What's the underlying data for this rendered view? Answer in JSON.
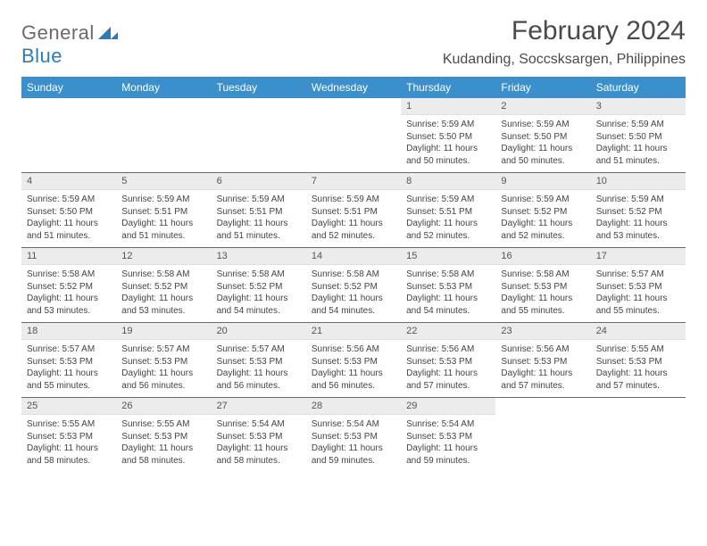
{
  "logo": {
    "general": "General",
    "blue": "Blue"
  },
  "title": "February 2024",
  "location": "Kudanding, Soccsksargen, Philippines",
  "colors": {
    "header_bg": "#3b8fca",
    "header_text": "#ffffff",
    "week_divider": "#2b7bbd",
    "daynum_bg": "#ececec",
    "body_text": "#444444",
    "logo_gray": "#6b6b6b",
    "logo_blue": "#2b7bbd",
    "page_bg": "#ffffff"
  },
  "day_names": [
    "Sunday",
    "Monday",
    "Tuesday",
    "Wednesday",
    "Thursday",
    "Friday",
    "Saturday"
  ],
  "weeks": [
    [
      {
        "n": "",
        "sr": "",
        "ss": "",
        "dl": ""
      },
      {
        "n": "",
        "sr": "",
        "ss": "",
        "dl": ""
      },
      {
        "n": "",
        "sr": "",
        "ss": "",
        "dl": ""
      },
      {
        "n": "",
        "sr": "",
        "ss": "",
        "dl": ""
      },
      {
        "n": "1",
        "sr": "Sunrise: 5:59 AM",
        "ss": "Sunset: 5:50 PM",
        "dl": "Daylight: 11 hours and 50 minutes."
      },
      {
        "n": "2",
        "sr": "Sunrise: 5:59 AM",
        "ss": "Sunset: 5:50 PM",
        "dl": "Daylight: 11 hours and 50 minutes."
      },
      {
        "n": "3",
        "sr": "Sunrise: 5:59 AM",
        "ss": "Sunset: 5:50 PM",
        "dl": "Daylight: 11 hours and 51 minutes."
      }
    ],
    [
      {
        "n": "4",
        "sr": "Sunrise: 5:59 AM",
        "ss": "Sunset: 5:50 PM",
        "dl": "Daylight: 11 hours and 51 minutes."
      },
      {
        "n": "5",
        "sr": "Sunrise: 5:59 AM",
        "ss": "Sunset: 5:51 PM",
        "dl": "Daylight: 11 hours and 51 minutes."
      },
      {
        "n": "6",
        "sr": "Sunrise: 5:59 AM",
        "ss": "Sunset: 5:51 PM",
        "dl": "Daylight: 11 hours and 51 minutes."
      },
      {
        "n": "7",
        "sr": "Sunrise: 5:59 AM",
        "ss": "Sunset: 5:51 PM",
        "dl": "Daylight: 11 hours and 52 minutes."
      },
      {
        "n": "8",
        "sr": "Sunrise: 5:59 AM",
        "ss": "Sunset: 5:51 PM",
        "dl": "Daylight: 11 hours and 52 minutes."
      },
      {
        "n": "9",
        "sr": "Sunrise: 5:59 AM",
        "ss": "Sunset: 5:52 PM",
        "dl": "Daylight: 11 hours and 52 minutes."
      },
      {
        "n": "10",
        "sr": "Sunrise: 5:59 AM",
        "ss": "Sunset: 5:52 PM",
        "dl": "Daylight: 11 hours and 53 minutes."
      }
    ],
    [
      {
        "n": "11",
        "sr": "Sunrise: 5:58 AM",
        "ss": "Sunset: 5:52 PM",
        "dl": "Daylight: 11 hours and 53 minutes."
      },
      {
        "n": "12",
        "sr": "Sunrise: 5:58 AM",
        "ss": "Sunset: 5:52 PM",
        "dl": "Daylight: 11 hours and 53 minutes."
      },
      {
        "n": "13",
        "sr": "Sunrise: 5:58 AM",
        "ss": "Sunset: 5:52 PM",
        "dl": "Daylight: 11 hours and 54 minutes."
      },
      {
        "n": "14",
        "sr": "Sunrise: 5:58 AM",
        "ss": "Sunset: 5:52 PM",
        "dl": "Daylight: 11 hours and 54 minutes."
      },
      {
        "n": "15",
        "sr": "Sunrise: 5:58 AM",
        "ss": "Sunset: 5:53 PM",
        "dl": "Daylight: 11 hours and 54 minutes."
      },
      {
        "n": "16",
        "sr": "Sunrise: 5:58 AM",
        "ss": "Sunset: 5:53 PM",
        "dl": "Daylight: 11 hours and 55 minutes."
      },
      {
        "n": "17",
        "sr": "Sunrise: 5:57 AM",
        "ss": "Sunset: 5:53 PM",
        "dl": "Daylight: 11 hours and 55 minutes."
      }
    ],
    [
      {
        "n": "18",
        "sr": "Sunrise: 5:57 AM",
        "ss": "Sunset: 5:53 PM",
        "dl": "Daylight: 11 hours and 55 minutes."
      },
      {
        "n": "19",
        "sr": "Sunrise: 5:57 AM",
        "ss": "Sunset: 5:53 PM",
        "dl": "Daylight: 11 hours and 56 minutes."
      },
      {
        "n": "20",
        "sr": "Sunrise: 5:57 AM",
        "ss": "Sunset: 5:53 PM",
        "dl": "Daylight: 11 hours and 56 minutes."
      },
      {
        "n": "21",
        "sr": "Sunrise: 5:56 AM",
        "ss": "Sunset: 5:53 PM",
        "dl": "Daylight: 11 hours and 56 minutes."
      },
      {
        "n": "22",
        "sr": "Sunrise: 5:56 AM",
        "ss": "Sunset: 5:53 PM",
        "dl": "Daylight: 11 hours and 57 minutes."
      },
      {
        "n": "23",
        "sr": "Sunrise: 5:56 AM",
        "ss": "Sunset: 5:53 PM",
        "dl": "Daylight: 11 hours and 57 minutes."
      },
      {
        "n": "24",
        "sr": "Sunrise: 5:55 AM",
        "ss": "Sunset: 5:53 PM",
        "dl": "Daylight: 11 hours and 57 minutes."
      }
    ],
    [
      {
        "n": "25",
        "sr": "Sunrise: 5:55 AM",
        "ss": "Sunset: 5:53 PM",
        "dl": "Daylight: 11 hours and 58 minutes."
      },
      {
        "n": "26",
        "sr": "Sunrise: 5:55 AM",
        "ss": "Sunset: 5:53 PM",
        "dl": "Daylight: 11 hours and 58 minutes."
      },
      {
        "n": "27",
        "sr": "Sunrise: 5:54 AM",
        "ss": "Sunset: 5:53 PM",
        "dl": "Daylight: 11 hours and 58 minutes."
      },
      {
        "n": "28",
        "sr": "Sunrise: 5:54 AM",
        "ss": "Sunset: 5:53 PM",
        "dl": "Daylight: 11 hours and 59 minutes."
      },
      {
        "n": "29",
        "sr": "Sunrise: 5:54 AM",
        "ss": "Sunset: 5:53 PM",
        "dl": "Daylight: 11 hours and 59 minutes."
      },
      {
        "n": "",
        "sr": "",
        "ss": "",
        "dl": ""
      },
      {
        "n": "",
        "sr": "",
        "ss": "",
        "dl": ""
      }
    ]
  ]
}
